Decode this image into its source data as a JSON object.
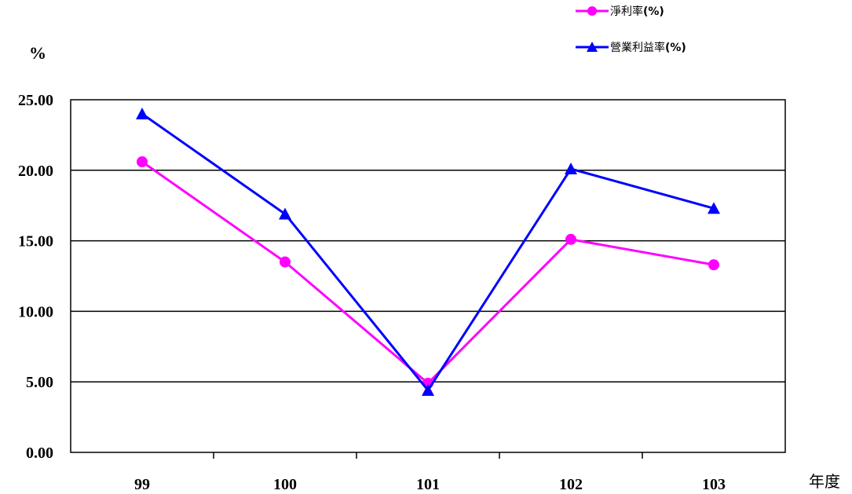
{
  "chart_data": {
    "type": "line",
    "categories": [
      "99",
      "100",
      "101",
      "102",
      "103"
    ],
    "series": [
      {
        "name": "淨利率",
        "unit_suffix": "(%)",
        "color": "#ff00ff",
        "marker": "circle",
        "values": [
          20.6,
          13.5,
          4.9,
          15.1,
          13.3
        ]
      },
      {
        "name": "營業利益率",
        "unit_suffix": "(%)",
        "color": "#0000ff",
        "marker": "triangle",
        "values": [
          24.0,
          16.9,
          4.4,
          20.1,
          17.3
        ]
      }
    ],
    "yticks": [
      "0.00",
      "5.00",
      "10.00",
      "15.00",
      "20.00",
      "25.00"
    ],
    "ylim": [
      0,
      25
    ],
    "ylabel": "%",
    "xlabel": "年度",
    "grid": "horizontal",
    "legend_position": "top-right"
  }
}
